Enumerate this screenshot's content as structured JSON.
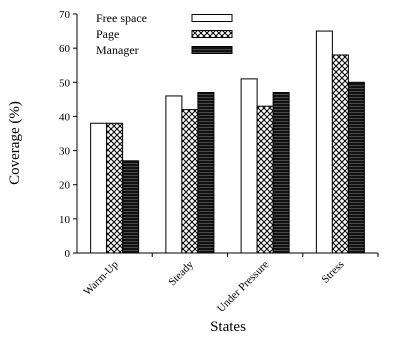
{
  "chart_data": {
    "type": "bar",
    "title": "",
    "xlabel": "States",
    "ylabel": "Coverage (%)",
    "ylim": [
      0,
      70
    ],
    "yticks": [
      0,
      10,
      20,
      30,
      40,
      50,
      60,
      70
    ],
    "categories": [
      "Warm-Up",
      "Steady",
      "Under Pressure",
      "Stress"
    ],
    "series": [
      {
        "name": "Free space",
        "values": [
          38,
          46,
          51,
          65
        ],
        "fill": "white"
      },
      {
        "name": "Page",
        "values": [
          38,
          42,
          43,
          58
        ],
        "fill": "crosshatch"
      },
      {
        "name": "Manager",
        "values": [
          27,
          47,
          47,
          50
        ],
        "fill": "dense-black"
      }
    ],
    "legend_position": "top-right",
    "grid": false
  },
  "colors": {
    "stroke": "#000000",
    "background": "#ffffff"
  }
}
